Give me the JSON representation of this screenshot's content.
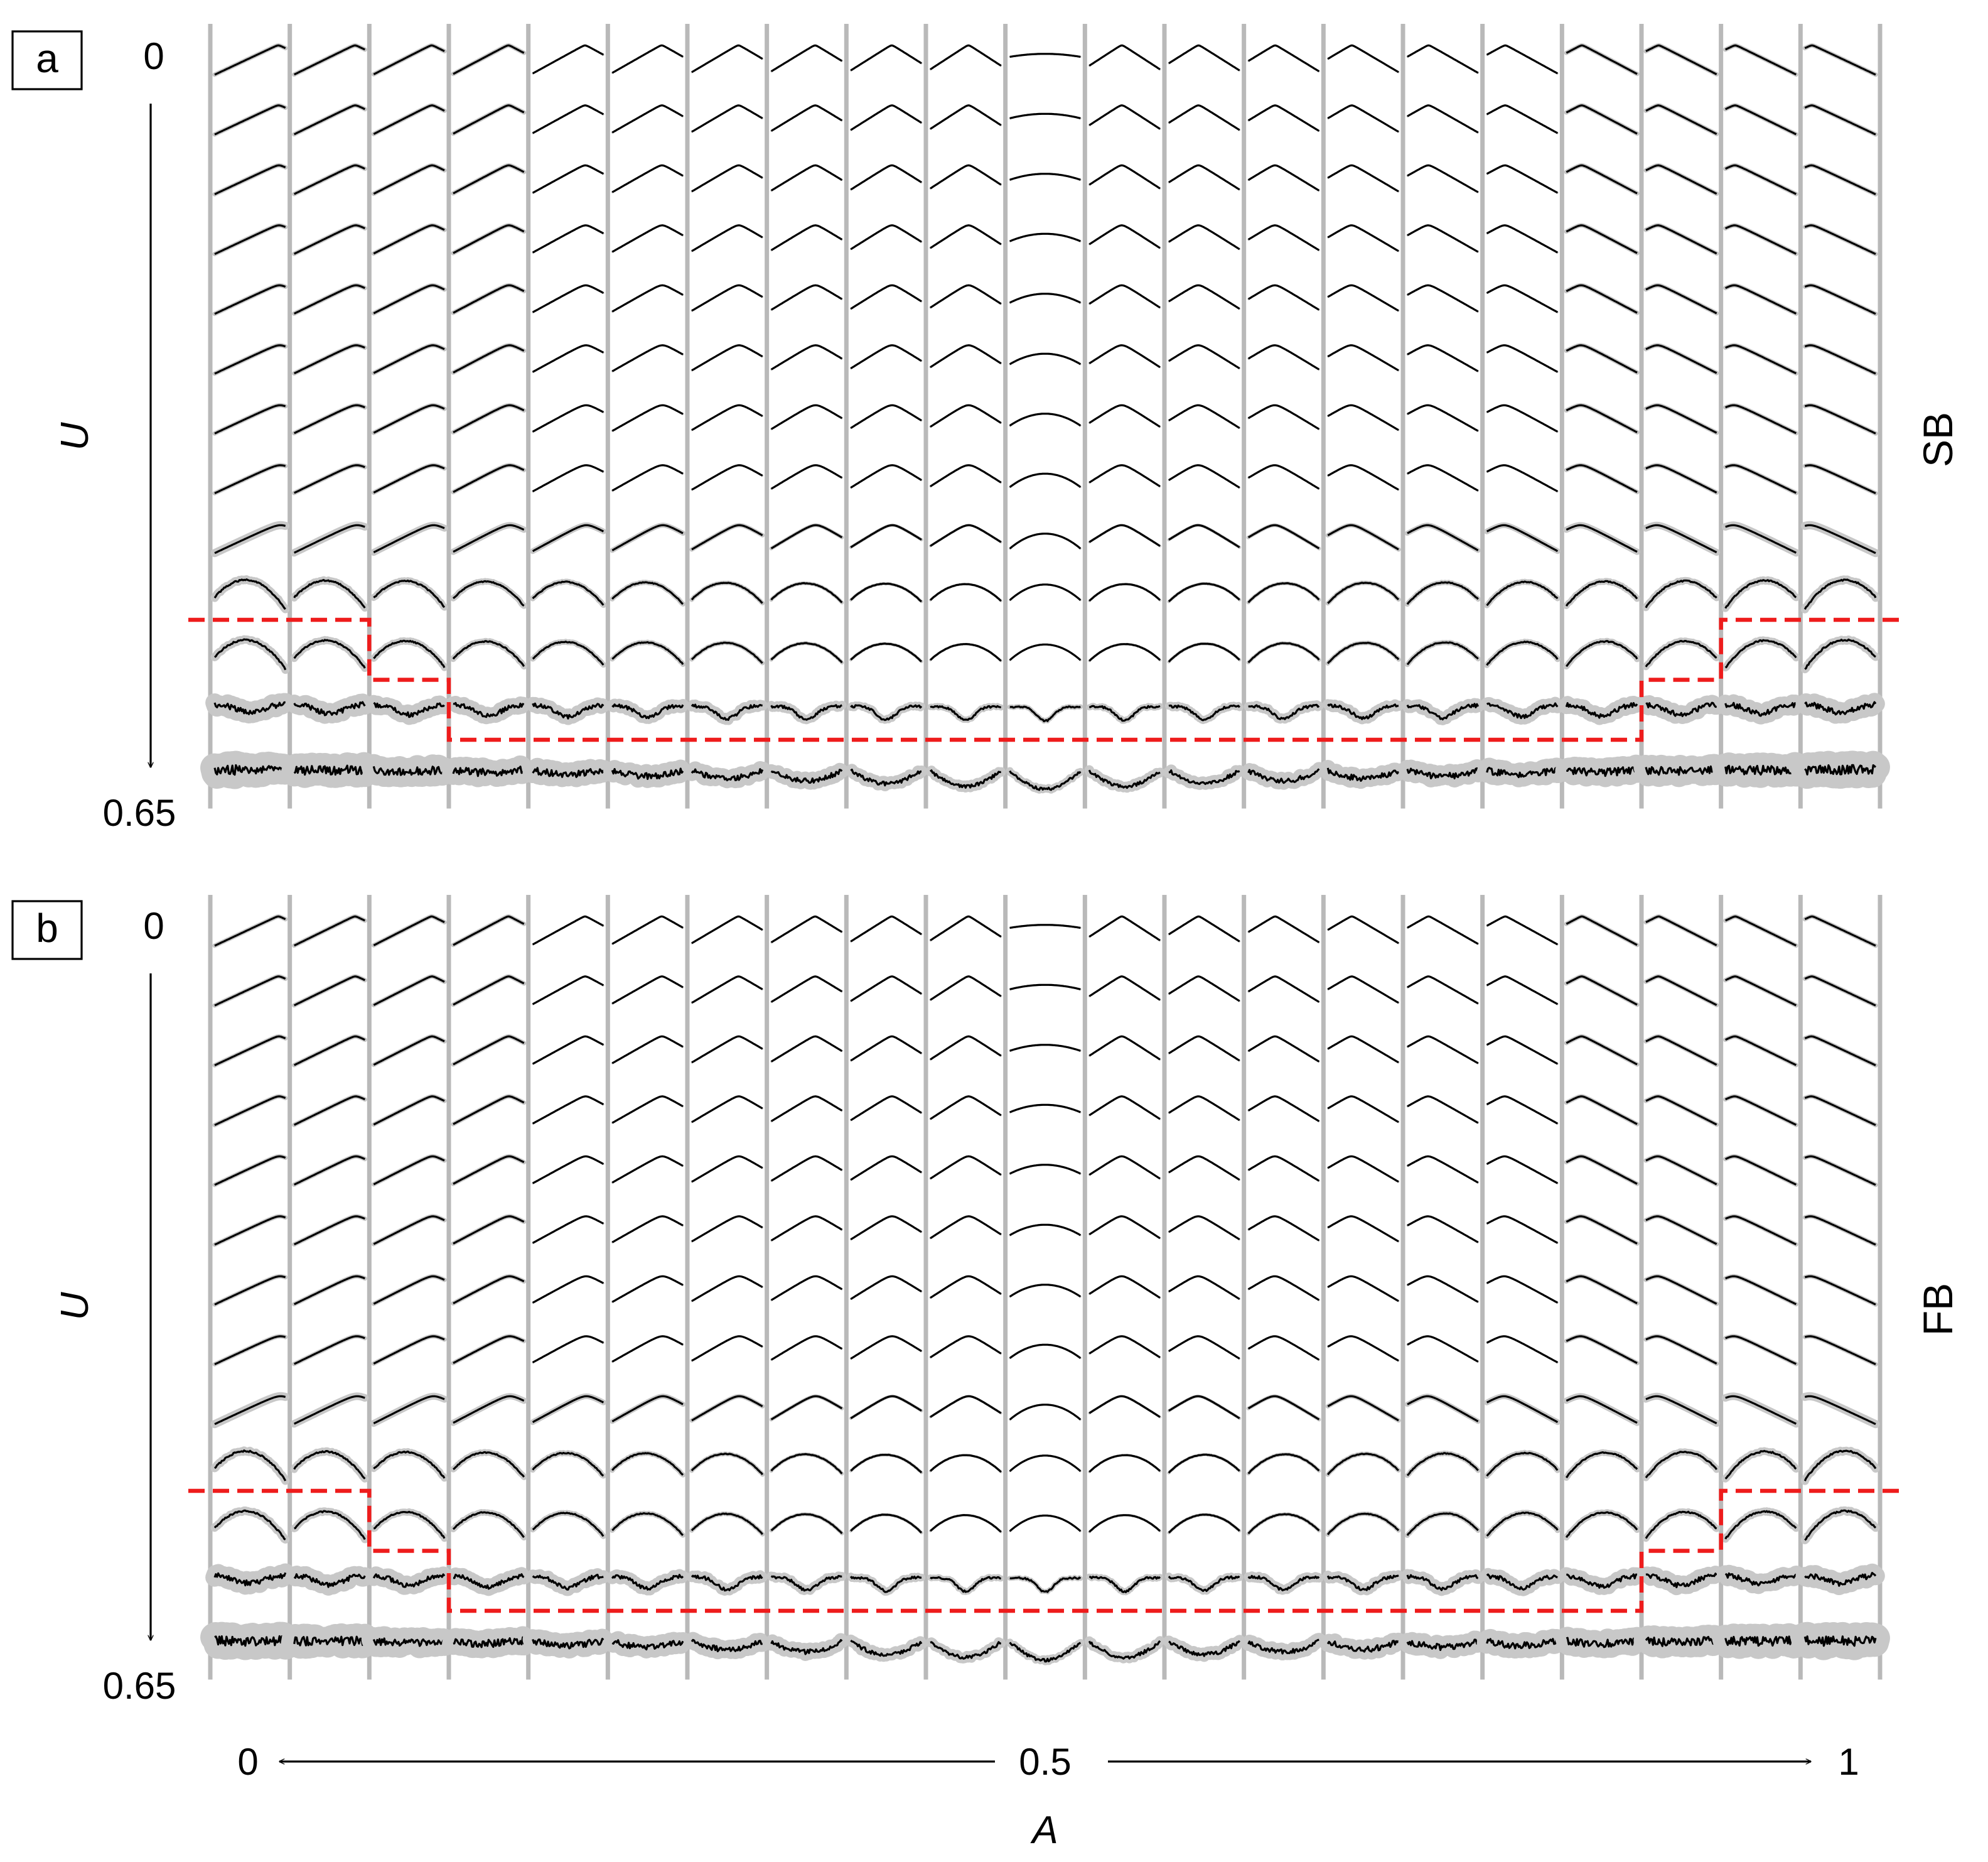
{
  "figure": {
    "panels": [
      {
        "id": "a",
        "letter": "a",
        "side_label": "SB",
        "u_axis": {
          "name": "U",
          "start": "0",
          "end": "0.65"
        }
      },
      {
        "id": "b",
        "letter": "b",
        "side_label": "FB",
        "u_axis": {
          "name": "U",
          "start": "0",
          "end": "0.65"
        }
      }
    ],
    "a_axis": {
      "name": "A",
      "start": "0",
      "mid": "0.5",
      "end": "1"
    },
    "grid": {
      "columns": 21,
      "rows": 13
    },
    "colors": {
      "boundary": "#ee1c1c",
      "mean_curve": "#000000",
      "spread_band": "#c8c8c8",
      "separator": "#b9b9b9"
    }
  },
  "chart_data": [
    {
      "type": "heatmap",
      "panel": "a",
      "description_label": "SB",
      "x_name": "A",
      "x_range": [
        0,
        1
      ],
      "x_columns": 21,
      "y_name": "U",
      "y_range": [
        0,
        0.65
      ],
      "y_rows": 13,
      "boundary_row_after_by_column": [
        9,
        9,
        10,
        11,
        11,
        11,
        11,
        11,
        11,
        11,
        11,
        11,
        11,
        11,
        11,
        11,
        11,
        11,
        10,
        9,
        9
      ]
    },
    {
      "type": "heatmap",
      "panel": "b",
      "description_label": "FB",
      "x_name": "A",
      "x_range": [
        0,
        1
      ],
      "x_columns": 21,
      "y_name": "U",
      "y_range": [
        0,
        0.65
      ],
      "y_rows": 13,
      "boundary_row_after_by_column": [
        9,
        9,
        10,
        11,
        11,
        11,
        11,
        11,
        11,
        11,
        11,
        11,
        11,
        11,
        11,
        11,
        11,
        11,
        10,
        9,
        9
      ]
    }
  ]
}
